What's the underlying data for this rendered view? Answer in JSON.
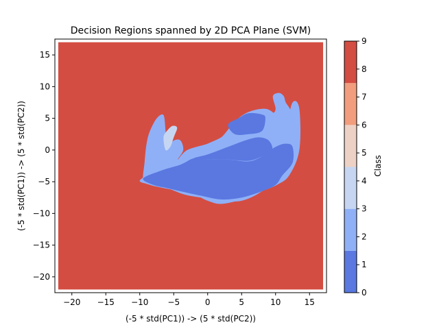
{
  "chart_data": {
    "type": "heatmap",
    "title": "Decision Regions spanned by 2D PCA Plane (SVM)",
    "xlabel": "(-5 * std(PC1)) -> (5 * std(PC2))",
    "ylabel": "(-5 * std(PC1)) -> (5 * std(PC2))",
    "xlim": [
      -22.5,
      17.5
    ],
    "ylim": [
      -22.5,
      17.5
    ],
    "xticks": [
      -20,
      -15,
      -10,
      -5,
      0,
      5,
      10,
      15
    ],
    "yticks": [
      -20,
      -15,
      -10,
      -5,
      0,
      5,
      10,
      15
    ],
    "data_extent": {
      "x": [
        -22.0,
        17.0
      ],
      "y": [
        -22.0,
        17.0
      ]
    },
    "background_class": 9,
    "colorbar": {
      "label": "Class",
      "ticks": [
        0,
        1,
        2,
        3,
        4,
        5,
        6,
        7,
        8,
        9
      ],
      "levels": [
        {
          "range": [
            0,
            1.5
          ],
          "color": "#5a78e0"
        },
        {
          "range": [
            1.5,
            3
          ],
          "color": "#8fb0f7"
        },
        {
          "range": [
            3,
            4.5
          ],
          "color": "#c6d6f2"
        },
        {
          "range": [
            4.5,
            6
          ],
          "color": "#edd1c4"
        },
        {
          "range": [
            6,
            7.5
          ],
          "color": "#f29d7d"
        },
        {
          "range": [
            7.5,
            9
          ],
          "color": "#d44d42"
        }
      ]
    },
    "regions": [
      {
        "level": 3,
        "points": [
          [
            -9.5,
            -4.8
          ],
          [
            -9.3,
            -2
          ],
          [
            -9,
            1
          ],
          [
            -8.5,
            3
          ],
          [
            -7.5,
            5
          ],
          [
            -6.5,
            5.5
          ],
          [
            -6.2,
            3
          ],
          [
            -6,
            0.5
          ],
          [
            -5,
            1.5
          ],
          [
            -4,
            1.5
          ],
          [
            -3.6,
            0
          ],
          [
            -4.4,
            -1.5
          ],
          [
            -3,
            0
          ],
          [
            0,
            1
          ],
          [
            2,
            2
          ],
          [
            4,
            4.5
          ],
          [
            6,
            6
          ],
          [
            8.5,
            6.5
          ],
          [
            10,
            5.5
          ],
          [
            10.7,
            4
          ],
          [
            10.5,
            2.5
          ],
          [
            11.5,
            3.5
          ],
          [
            12.5,
            7.5
          ],
          [
            13.5,
            6.5
          ],
          [
            13.5,
            0
          ],
          [
            12,
            -4
          ],
          [
            10.2,
            -5.5
          ],
          [
            8,
            -6.5
          ],
          [
            5,
            -7.8
          ],
          [
            2,
            -8.5
          ],
          [
            0,
            -8
          ],
          [
            -2,
            -7
          ],
          [
            -4,
            -6.5
          ],
          [
            -6.5,
            -6
          ],
          [
            -8.5,
            -5.5
          ]
        ]
      },
      {
        "level": 4,
        "points": [
          [
            -6.5,
            2
          ],
          [
            -6,
            3
          ],
          [
            -5.2,
            3.8
          ],
          [
            -4.5,
            3.5
          ],
          [
            -5,
            2
          ],
          [
            -5.5,
            0.5
          ],
          [
            -6.2,
            0
          ]
        ]
      },
      {
        "level": 2,
        "points": [
          [
            -10,
            -4.8
          ],
          [
            -7,
            -3
          ],
          [
            -4,
            -1.5
          ],
          [
            -2,
            0
          ],
          [
            0,
            1
          ],
          [
            2,
            2
          ],
          [
            4,
            3.5
          ],
          [
            6,
            5.5
          ],
          [
            8,
            6
          ],
          [
            9.5,
            5.8
          ],
          [
            10,
            6.5
          ],
          [
            9.6,
            8.5
          ],
          [
            10.5,
            9
          ],
          [
            11.2,
            8.5
          ],
          [
            11.5,
            7.5
          ],
          [
            12.2,
            6.3
          ],
          [
            13.2,
            3.5
          ],
          [
            12.5,
            0
          ],
          [
            11,
            -1
          ],
          [
            10.3,
            -4
          ],
          [
            8,
            -6.5
          ],
          [
            5,
            -8
          ],
          [
            2,
            -8
          ],
          [
            -1,
            -7.5
          ],
          [
            -3.5,
            -7
          ],
          [
            -6,
            -6
          ],
          [
            -8,
            -5.5
          ]
        ]
      },
      {
        "level": 1,
        "points": [
          [
            3,
            4
          ],
          [
            4.5,
            5
          ],
          [
            6,
            5.8
          ],
          [
            8,
            5.6
          ],
          [
            8.5,
            5
          ],
          [
            8,
            3
          ],
          [
            6,
            2.5
          ],
          [
            4,
            2.5
          ]
        ]
      },
      {
        "level": 1,
        "points": [
          [
            -2,
            -1.3
          ],
          [
            0,
            -0.7
          ],
          [
            3,
            0.5
          ],
          [
            5.5,
            1.5
          ],
          [
            7.5,
            2
          ],
          [
            9,
            1.5
          ],
          [
            9.5,
            0
          ],
          [
            8,
            -1
          ],
          [
            6,
            -1.7
          ],
          [
            3,
            -1.5
          ],
          [
            0,
            -1.5
          ]
        ]
      },
      {
        "level": 0,
        "points": [
          [
            -9.5,
            -4.5
          ],
          [
            -7,
            -3.3
          ],
          [
            -4,
            -2.3
          ],
          [
            -2,
            -1.3
          ],
          [
            0,
            -1.5
          ],
          [
            3,
            -1.5
          ],
          [
            6,
            -1.8
          ],
          [
            8,
            -1
          ],
          [
            10,
            0.5
          ],
          [
            11.5,
            1
          ],
          [
            12.5,
            0.5
          ],
          [
            12.5,
            -2
          ],
          [
            11,
            -4
          ],
          [
            10,
            -5.5
          ],
          [
            8,
            -6.5
          ],
          [
            5,
            -7.5
          ],
          [
            2,
            -7.8
          ],
          [
            -1,
            -7.2
          ],
          [
            -4,
            -6.5
          ],
          [
            -6,
            -6
          ],
          [
            -8,
            -5.5
          ]
        ]
      },
      {
        "level": 1,
        "points": [
          [
            -7,
            -4.5
          ],
          [
            -6,
            -3.5
          ],
          [
            -3,
            -3
          ],
          [
            0,
            -3.5
          ],
          [
            3,
            -4.3
          ],
          [
            4.5,
            -4.7
          ],
          [
            4.5,
            -5.5
          ],
          [
            3,
            -6
          ],
          [
            0,
            -6.2
          ],
          [
            -3,
            -5.8
          ],
          [
            -6,
            -5.3
          ]
        ]
      }
    ]
  }
}
